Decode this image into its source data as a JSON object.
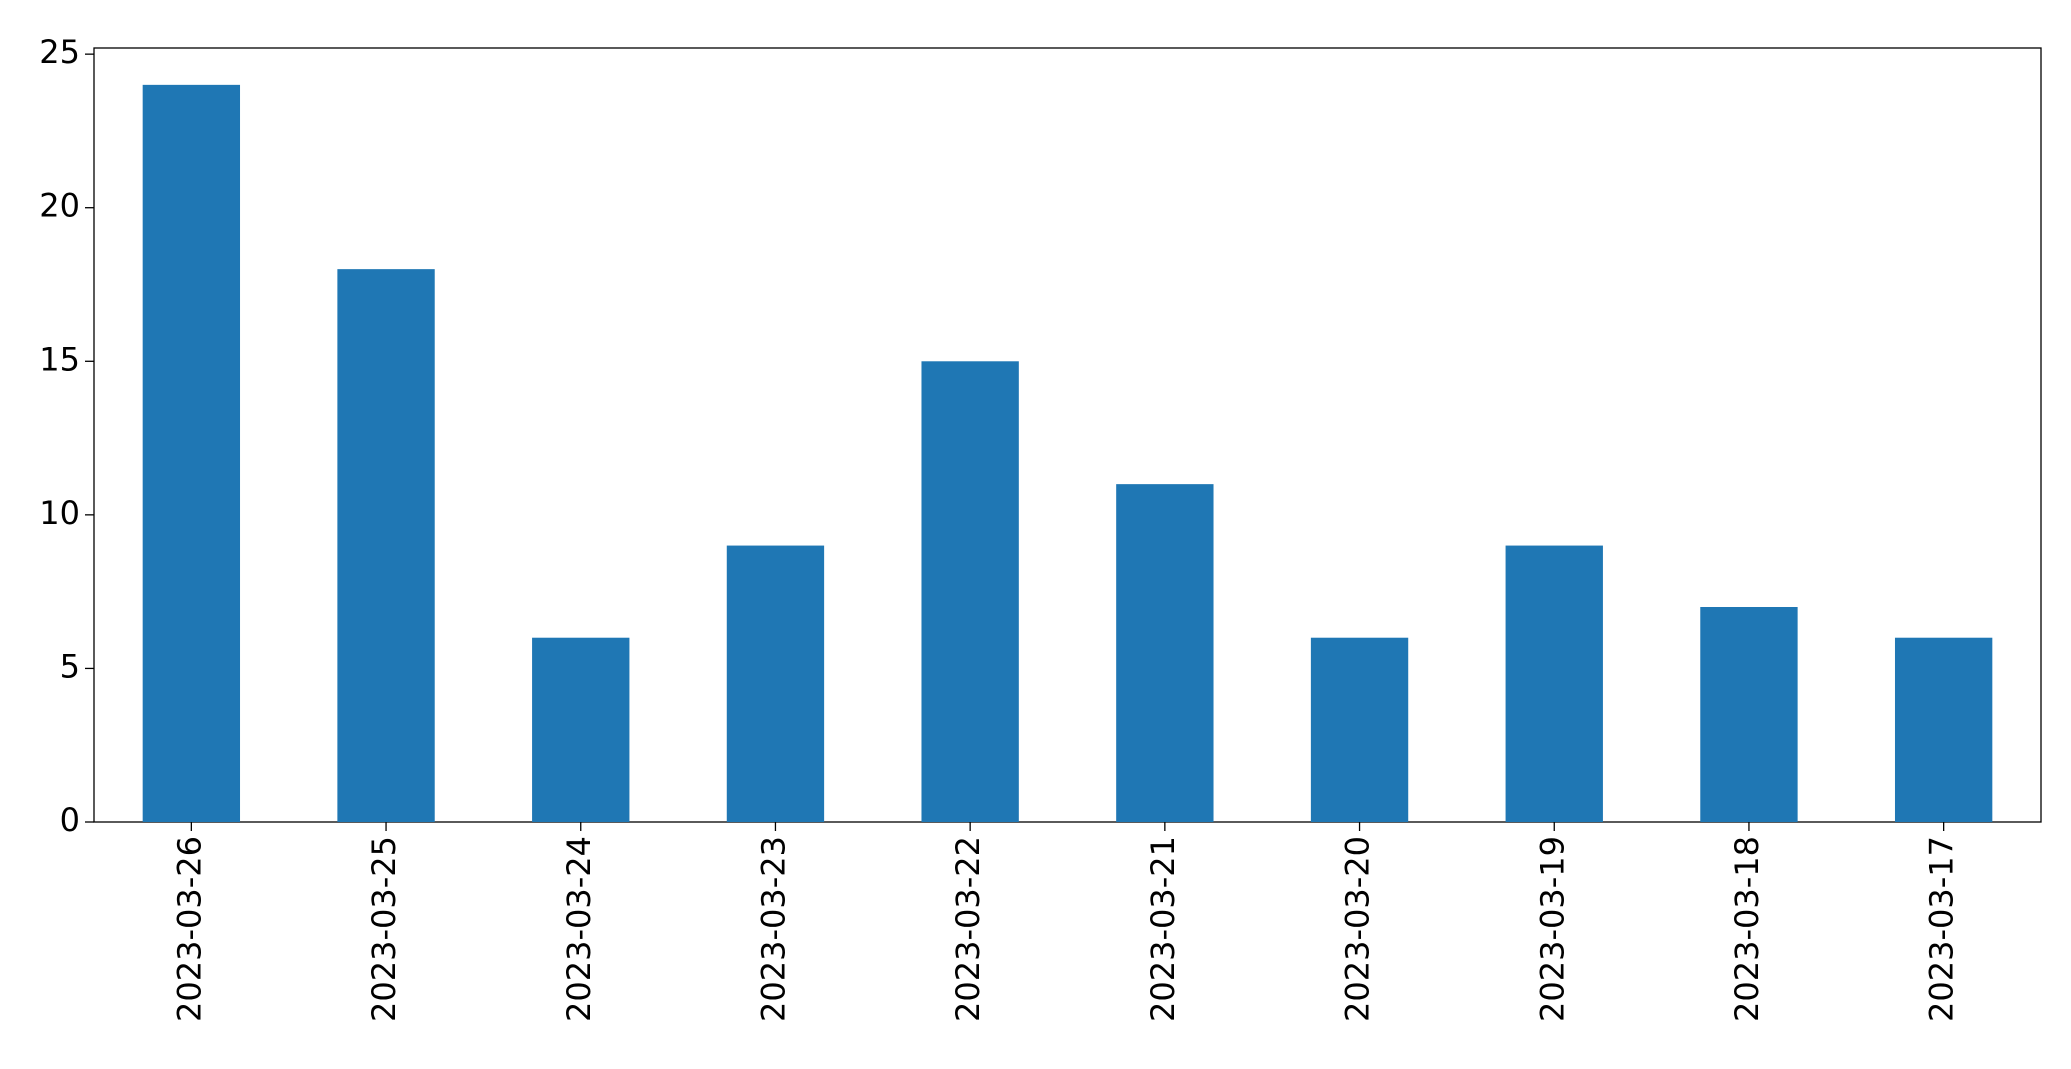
{
  "chart_data": {
    "type": "bar",
    "categories": [
      "2023-03-26",
      "2023-03-25",
      "2023-03-24",
      "2023-03-23",
      "2023-03-22",
      "2023-03-21",
      "2023-03-20",
      "2023-03-19",
      "2023-03-18",
      "2023-03-17"
    ],
    "values": [
      24,
      18,
      6,
      9,
      15,
      11,
      6,
      9,
      7,
      6
    ],
    "color": "#1f77b4",
    "ylim": [
      0,
      25.2
    ],
    "yticks": [
      0,
      5,
      10,
      15,
      20,
      25
    ],
    "grid": false
  }
}
